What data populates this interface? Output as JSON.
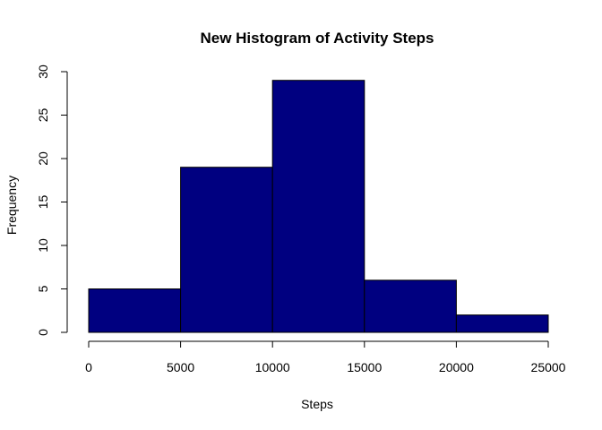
{
  "chart_data": {
    "type": "bar",
    "title": "New Histogram of Activity Steps",
    "xlabel": "Steps",
    "ylabel": "Frequency",
    "bins": [
      {
        "from": 0,
        "to": 5000,
        "count": 5
      },
      {
        "from": 5000,
        "to": 10000,
        "count": 19
      },
      {
        "from": 10000,
        "to": 15000,
        "count": 29
      },
      {
        "from": 15000,
        "to": 20000,
        "count": 6
      },
      {
        "from": 20000,
        "to": 25000,
        "count": 2
      }
    ],
    "xlim": [
      0,
      25000
    ],
    "ylim": [
      0,
      30
    ],
    "x_ticks": [
      "0",
      "5000",
      "10000",
      "15000",
      "20000",
      "25000"
    ],
    "y_ticks": [
      "0",
      "5",
      "10",
      "15",
      "20",
      "25",
      "30"
    ],
    "bar_color": "#000080",
    "bar_border_color": "#000000",
    "grid": false,
    "legend": "none"
  }
}
